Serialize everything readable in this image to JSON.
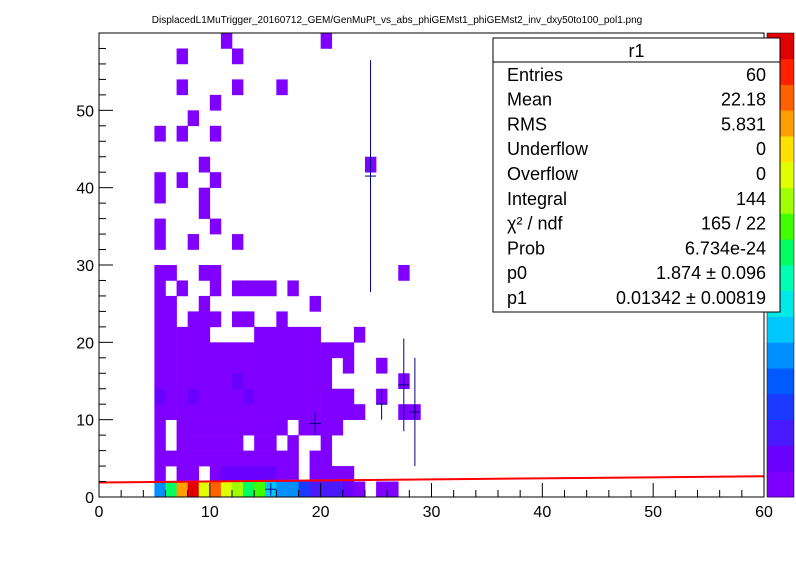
{
  "title": "DisplacedL1MuTrigger_20160712_GEM/GenMuPt_vs_abs_phiGEMst1_phiGEMst2_inv_dxy50to100_pol1.png",
  "stats": {
    "header": "r1",
    "rows": [
      {
        "label": "Entries",
        "value": "60"
      },
      {
        "label": "Mean",
        "value": "22.18"
      },
      {
        "label": "RMS",
        "value": "5.831"
      },
      {
        "label": "Underflow",
        "value": "0"
      },
      {
        "label": "Overflow",
        "value": "0"
      },
      {
        "label": "Integral",
        "value": "144"
      },
      {
        "label": "χ² / ndf",
        "value": "165 / 22"
      },
      {
        "label": "Prob",
        "value": "6.734e-24"
      },
      {
        "label": "p0",
        "value": "1.874 ± 0.096"
      },
      {
        "label": "p1",
        "value": "0.01342 ± 0.00819"
      }
    ]
  },
  "colors": {
    "fit_line": "#ff0000",
    "profile": "#000080",
    "palette": [
      "#7f00ff",
      "#6a00ff",
      "#4a1aff",
      "#1a3aff",
      "#005aff",
      "#0090ff",
      "#00c8ff",
      "#00e8e8",
      "#00ffb0",
      "#00ff60",
      "#40ff00",
      "#a0ff00",
      "#e0ff00",
      "#ffe000",
      "#ffa000",
      "#ff6000",
      "#ff2000",
      "#e00000"
    ]
  },
  "chart_data": {
    "type": "heatmap",
    "title": "DisplacedL1MuTrigger_20160712_GEM/GenMuPt_vs_abs_phiGEMst1_phiGEMst2_inv_dxy50to100_pol1.png",
    "xlim": [
      0,
      60
    ],
    "ylim": [
      0,
      60
    ],
    "x_ticks": [
      "0",
      "10",
      "20",
      "30",
      "40",
      "50",
      "60"
    ],
    "y_ticks": [
      "0",
      "10",
      "20",
      "30",
      "40",
      "50"
    ],
    "bin_width_x": 1,
    "bin_width_y": 2,
    "cells": [
      [
        5,
        0,
        6
      ],
      [
        6,
        0,
        9
      ],
      [
        7,
        0,
        14
      ],
      [
        8,
        0,
        16
      ],
      [
        9,
        0,
        12
      ],
      [
        10,
        0,
        15
      ],
      [
        11,
        0,
        12
      ],
      [
        12,
        0,
        11
      ],
      [
        13,
        0,
        9
      ],
      [
        14,
        0,
        10
      ],
      [
        15,
        0,
        7
      ],
      [
        16,
        0,
        6
      ],
      [
        17,
        0,
        6
      ],
      [
        18,
        0,
        4
      ],
      [
        19,
        0,
        3
      ],
      [
        20,
        0,
        3
      ],
      [
        21,
        0,
        3
      ],
      [
        22,
        0,
        2
      ],
      [
        23,
        0,
        1
      ],
      [
        25,
        0,
        1
      ],
      [
        26,
        0,
        1
      ],
      [
        5,
        2,
        1
      ],
      [
        7,
        2,
        1
      ],
      [
        8,
        2,
        1
      ],
      [
        10,
        2,
        1
      ],
      [
        11,
        2,
        2
      ],
      [
        12,
        2,
        2
      ],
      [
        13,
        2,
        2
      ],
      [
        14,
        2,
        2
      ],
      [
        15,
        2,
        2
      ],
      [
        16,
        2,
        1
      ],
      [
        17,
        2,
        1
      ],
      [
        19,
        2,
        1
      ],
      [
        20,
        2,
        1
      ],
      [
        21,
        2,
        1
      ],
      [
        22,
        2,
        1
      ],
      [
        5,
        4,
        1
      ],
      [
        6,
        4,
        1
      ],
      [
        7,
        4,
        1
      ],
      [
        8,
        4,
        1
      ],
      [
        9,
        4,
        1
      ],
      [
        10,
        4,
        1
      ],
      [
        11,
        4,
        1
      ],
      [
        12,
        4,
        1
      ],
      [
        13,
        4,
        1
      ],
      [
        14,
        4,
        1
      ],
      [
        15,
        4,
        1
      ],
      [
        16,
        4,
        1
      ],
      [
        17,
        4,
        1
      ],
      [
        19,
        4,
        1
      ],
      [
        20,
        4,
        1
      ],
      [
        5,
        6,
        1
      ],
      [
        7,
        6,
        1
      ],
      [
        8,
        6,
        1
      ],
      [
        9,
        6,
        1
      ],
      [
        10,
        6,
        1
      ],
      [
        11,
        6,
        1
      ],
      [
        12,
        6,
        1
      ],
      [
        14,
        6,
        1
      ],
      [
        15,
        6,
        1
      ],
      [
        17,
        6,
        1
      ],
      [
        20,
        6,
        1
      ],
      [
        5,
        8,
        1
      ],
      [
        7,
        8,
        1
      ],
      [
        8,
        8,
        1
      ],
      [
        9,
        8,
        1
      ],
      [
        10,
        8,
        1
      ],
      [
        11,
        8,
        1
      ],
      [
        12,
        8,
        1
      ],
      [
        13,
        8,
        1
      ],
      [
        14,
        8,
        1
      ],
      [
        15,
        8,
        1
      ],
      [
        16,
        8,
        1
      ],
      [
        18,
        8,
        1
      ],
      [
        19,
        8,
        1
      ],
      [
        20,
        8,
        1
      ],
      [
        21,
        8,
        1
      ],
      [
        5,
        10,
        1
      ],
      [
        6,
        10,
        1
      ],
      [
        7,
        10,
        1
      ],
      [
        8,
        10,
        1
      ],
      [
        9,
        10,
        1
      ],
      [
        10,
        10,
        1
      ],
      [
        11,
        10,
        1
      ],
      [
        12,
        10,
        1
      ],
      [
        13,
        10,
        1
      ],
      [
        14,
        10,
        1
      ],
      [
        15,
        10,
        1
      ],
      [
        16,
        10,
        1
      ],
      [
        17,
        10,
        1
      ],
      [
        18,
        10,
        1
      ],
      [
        19,
        10,
        1
      ],
      [
        20,
        10,
        1
      ],
      [
        21,
        10,
        1
      ],
      [
        22,
        10,
        1
      ],
      [
        23,
        10,
        1
      ],
      [
        27,
        10,
        1
      ],
      [
        28,
        10,
        1
      ],
      [
        5,
        12,
        2
      ],
      [
        6,
        12,
        1
      ],
      [
        7,
        12,
        1
      ],
      [
        8,
        12,
        2
      ],
      [
        9,
        12,
        1
      ],
      [
        10,
        12,
        1
      ],
      [
        11,
        12,
        1
      ],
      [
        12,
        12,
        1
      ],
      [
        13,
        12,
        2
      ],
      [
        14,
        12,
        1
      ],
      [
        15,
        12,
        1
      ],
      [
        16,
        12,
        1
      ],
      [
        17,
        12,
        1
      ],
      [
        18,
        12,
        1
      ],
      [
        19,
        12,
        1
      ],
      [
        20,
        12,
        1
      ],
      [
        21,
        12,
        1
      ],
      [
        22,
        12,
        1
      ],
      [
        25,
        12,
        1
      ],
      [
        5,
        14,
        1
      ],
      [
        6,
        14,
        1
      ],
      [
        7,
        14,
        1
      ],
      [
        8,
        14,
        1
      ],
      [
        9,
        14,
        1
      ],
      [
        10,
        14,
        1
      ],
      [
        11,
        14,
        1
      ],
      [
        12,
        14,
        2
      ],
      [
        13,
        14,
        1
      ],
      [
        14,
        14,
        1
      ],
      [
        15,
        14,
        1
      ],
      [
        16,
        14,
        1
      ],
      [
        17,
        14,
        1
      ],
      [
        18,
        14,
        1
      ],
      [
        19,
        14,
        1
      ],
      [
        20,
        14,
        1
      ],
      [
        27,
        14,
        1
      ],
      [
        5,
        16,
        1
      ],
      [
        6,
        16,
        1
      ],
      [
        7,
        16,
        1
      ],
      [
        8,
        16,
        1
      ],
      [
        9,
        16,
        1
      ],
      [
        10,
        16,
        1
      ],
      [
        11,
        16,
        1
      ],
      [
        12,
        16,
        1
      ],
      [
        13,
        16,
        1
      ],
      [
        14,
        16,
        1
      ],
      [
        15,
        16,
        1
      ],
      [
        16,
        16,
        1
      ],
      [
        17,
        16,
        1
      ],
      [
        18,
        16,
        1
      ],
      [
        19,
        16,
        1
      ],
      [
        20,
        16,
        1
      ],
      [
        22,
        16,
        1
      ],
      [
        25,
        16,
        1
      ],
      [
        5,
        18,
        1
      ],
      [
        6,
        18,
        1
      ],
      [
        7,
        18,
        1
      ],
      [
        8,
        18,
        1
      ],
      [
        9,
        18,
        1
      ],
      [
        10,
        18,
        1
      ],
      [
        11,
        18,
        1
      ],
      [
        12,
        18,
        1
      ],
      [
        13,
        18,
        1
      ],
      [
        14,
        18,
        1
      ],
      [
        15,
        18,
        1
      ],
      [
        16,
        18,
        1
      ],
      [
        17,
        18,
        1
      ],
      [
        18,
        18,
        1
      ],
      [
        19,
        18,
        1
      ],
      [
        20,
        18,
        1
      ],
      [
        21,
        18,
        1
      ],
      [
        22,
        18,
        1
      ],
      [
        5,
        20,
        1
      ],
      [
        6,
        20,
        1
      ],
      [
        7,
        20,
        1
      ],
      [
        8,
        20,
        1
      ],
      [
        9,
        20,
        1
      ],
      [
        14,
        20,
        1
      ],
      [
        15,
        20,
        1
      ],
      [
        16,
        20,
        1
      ],
      [
        17,
        20,
        1
      ],
      [
        18,
        20,
        1
      ],
      [
        19,
        20,
        1
      ],
      [
        23,
        20,
        1
      ],
      [
        5,
        22,
        1
      ],
      [
        6,
        22,
        1
      ],
      [
        8,
        22,
        1
      ],
      [
        9,
        22,
        1
      ],
      [
        10,
        22,
        1
      ],
      [
        12,
        22,
        1
      ],
      [
        13,
        22,
        1
      ],
      [
        16,
        22,
        1
      ],
      [
        5,
        24,
        1
      ],
      [
        6,
        24,
        1
      ],
      [
        9,
        24,
        1
      ],
      [
        19,
        24,
        1
      ],
      [
        5,
        26,
        1
      ],
      [
        7,
        26,
        1
      ],
      [
        10,
        26,
        1
      ],
      [
        12,
        26,
        1
      ],
      [
        13,
        26,
        1
      ],
      [
        14,
        26,
        1
      ],
      [
        15,
        26,
        1
      ],
      [
        17,
        26,
        1
      ],
      [
        5,
        28,
        1
      ],
      [
        6,
        28,
        1
      ],
      [
        9,
        28,
        1
      ],
      [
        10,
        28,
        1
      ],
      [
        27,
        28,
        1
      ],
      [
        5,
        32,
        1
      ],
      [
        8,
        32,
        1
      ],
      [
        12,
        32,
        1
      ],
      [
        5,
        34,
        1
      ],
      [
        10,
        34,
        1
      ],
      [
        9,
        36,
        1
      ],
      [
        5,
        38,
        1
      ],
      [
        9,
        38,
        1
      ],
      [
        5,
        40,
        1
      ],
      [
        7,
        40,
        1
      ],
      [
        10,
        40,
        1
      ],
      [
        9,
        42,
        1
      ],
      [
        24,
        42,
        1
      ],
      [
        5,
        46,
        1
      ],
      [
        7,
        46,
        1
      ],
      [
        10,
        46,
        1
      ],
      [
        8,
        48,
        1
      ],
      [
        10,
        50,
        1
      ],
      [
        7,
        52,
        1
      ],
      [
        12,
        52,
        1
      ],
      [
        16,
        52,
        1
      ],
      [
        7,
        56,
        1
      ],
      [
        12,
        56,
        1
      ],
      [
        11,
        58,
        1
      ],
      [
        20,
        58,
        1
      ]
    ],
    "profile_points": [
      {
        "x": 15.5,
        "y": 1.0,
        "err": 0.8
      },
      {
        "x": 19.5,
        "y": 9.5,
        "err": 1.5
      },
      {
        "x": 24.5,
        "y": 41.5,
        "err": 15
      },
      {
        "x": 25.5,
        "y": 12.0,
        "err": 2.0
      },
      {
        "x": 27.5,
        "y": 14.5,
        "err": 6.0
      },
      {
        "x": 28.5,
        "y": 11.0,
        "err": 7.0
      }
    ],
    "fit": {
      "p0": 1.874,
      "p1": 0.01342,
      "x_range": [
        0,
        60
      ]
    },
    "z_range": [
      0,
      16
    ]
  }
}
